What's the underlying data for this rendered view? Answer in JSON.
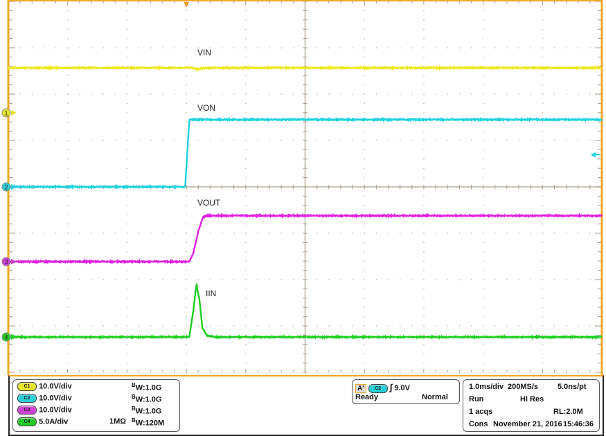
{
  "chart_data": {
    "type": "line",
    "title": "",
    "x_unit": "ms",
    "xlim": [
      -3.0,
      7.0
    ],
    "grid": true,
    "trigger_time": 0,
    "series": [
      {
        "name": "VIN",
        "channel": "1",
        "color": "#f0e616",
        "scale": 10.0,
        "unit": "V",
        "points": [
          [
            -3,
            9.7
          ],
          [
            0.1,
            9.7
          ],
          [
            0.18,
            9.45
          ],
          [
            0.3,
            9.65
          ],
          [
            0.5,
            9.7
          ],
          [
            7,
            9.7
          ]
        ]
      },
      {
        "name": "VON",
        "channel": "2",
        "color": "#1ed2e0",
        "scale": 10.0,
        "unit": "V",
        "points": [
          [
            -3,
            0
          ],
          [
            -0.02,
            0
          ],
          [
            0.05,
            14.5
          ],
          [
            7,
            14.5
          ]
        ]
      },
      {
        "name": "VOUT",
        "channel": "3",
        "color": "#e020e0",
        "scale": 10.0,
        "unit": "V",
        "points": [
          [
            -3,
            0
          ],
          [
            0.05,
            0
          ],
          [
            0.12,
            2
          ],
          [
            0.2,
            6.5
          ],
          [
            0.28,
            9.6
          ],
          [
            0.35,
            9.9
          ],
          [
            7,
            9.9
          ]
        ]
      },
      {
        "name": "IIN",
        "channel": "4",
        "color": "#1ecf1e",
        "scale": 5.0,
        "unit": "A",
        "points": [
          [
            -3,
            0
          ],
          [
            0.05,
            0
          ],
          [
            0.12,
            3
          ],
          [
            0.17,
            5.7
          ],
          [
            0.22,
            4
          ],
          [
            0.27,
            1
          ],
          [
            0.35,
            0.15
          ],
          [
            0.5,
            0
          ],
          [
            7,
            0
          ]
        ]
      }
    ],
    "trigger_level_color": "#1ed2e0",
    "trigger_marker_color": "#f5961e"
  },
  "channels": [
    {
      "pill": "C1",
      "color": "#e6e62a",
      "vdiv": "10.0V/div",
      "imp": "",
      "bw_b": "B",
      "bw": "W:1.0G"
    },
    {
      "pill": "C2",
      "color": "#2ad0d8",
      "vdiv": "10.0V/div",
      "imp": "",
      "bw_b": "B",
      "bw": "W:1.0G"
    },
    {
      "pill": "C3",
      "color": "#d040d8",
      "vdiv": "10.0V/div",
      "imp": "",
      "bw_b": "B",
      "bw": "W:1.0G"
    },
    {
      "pill": "C4",
      "color": "#22cc22",
      "vdiv": "5.0A/div",
      "imp": "1MΩ",
      "bw_b": "B",
      "bw": "W:120M"
    }
  ],
  "trigger": {
    "mode_box": "A'",
    "source": "C2",
    "slope": "∫",
    "level": "9.0V",
    "state": "Ready",
    "mode": "Normal"
  },
  "timebase": {
    "hdiv": "1.0ms/div",
    "rate": "200MS/s",
    "pt": "5.0ns/pt",
    "run": "Run",
    "acq_mode": "Hi Res",
    "acqs": "1 acqs",
    "rl": "RL:2.0M",
    "cons": "Cons",
    "date": "November 21, 2016",
    "time": "15:46:36"
  },
  "markers": [
    "1",
    "2",
    "3",
    "4"
  ]
}
